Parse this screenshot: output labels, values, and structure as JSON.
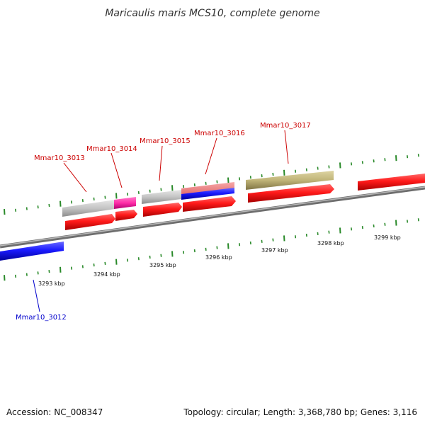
{
  "title": "Maricaulis maris MCS10, complete genome",
  "footer": {
    "accession": "Accession: NC_008347",
    "topology": "Topology: circular; Length: 3,368,780 bp; Genes: 3,116"
  },
  "colors": {
    "backbone": "#8a8a8a",
    "tick": "#2a8a2a",
    "cds": "#ff1a1a",
    "rna": "#c8c8c8",
    "blue": "#1a1aff",
    "magenta": "#ff33aa",
    "olive": "#c2b77a",
    "pink": "#f07c7c",
    "label_red": "#cc0000",
    "label_blue": "#0000cc"
  },
  "kbp_labels": [
    "3293 kbp",
    "3294 kbp",
    "3295 kbp",
    "3296 kbp",
    "3297 kbp",
    "3298 kbp",
    "3299 kbp"
  ],
  "genes": [
    {
      "id": "Mmar10_3012",
      "strand": "-",
      "color": "label_blue"
    },
    {
      "id": "Mmar10_3013",
      "strand": "+",
      "color": "label_red"
    },
    {
      "id": "Mmar10_3014",
      "strand": "+",
      "color": "label_red"
    },
    {
      "id": "Mmar10_3015",
      "strand": "+",
      "color": "label_red"
    },
    {
      "id": "Mmar10_3016",
      "strand": "+",
      "color": "label_red"
    },
    {
      "id": "Mmar10_3017",
      "strand": "+",
      "color": "label_red"
    }
  ]
}
